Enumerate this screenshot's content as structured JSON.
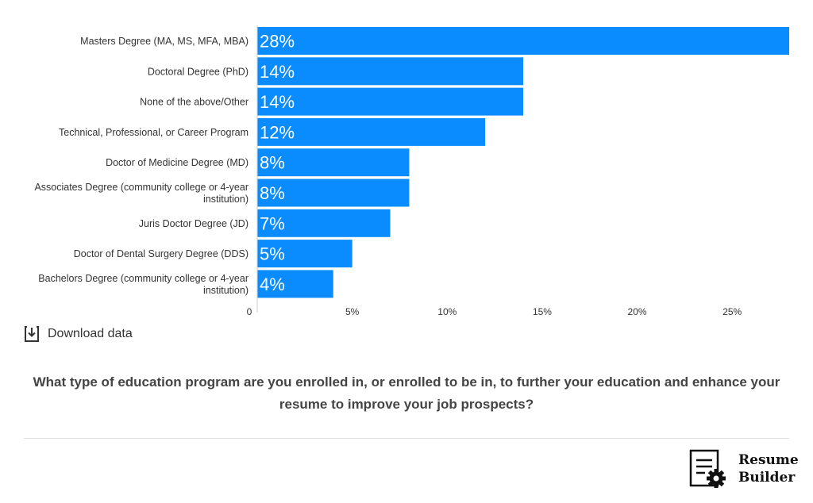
{
  "chart_data": {
    "type": "bar",
    "orientation": "horizontal",
    "categories": [
      "Masters Degree (MA, MS, MFA, MBA)",
      "Doctoral Degree (PhD)",
      "None of the above/Other",
      "Technical, Professional, or Career Program",
      "Doctor of Medicine Degree (MD)",
      "Associates Degree (community college or 4-year institution)",
      "Juris Doctor Degree (JD)",
      "Doctor of Dental Surgery Degree (DDS)",
      "Bachelors Degree (community college or 4-year institution)"
    ],
    "values": [
      28,
      14,
      14,
      12,
      8,
      8,
      7,
      5,
      4
    ],
    "data_labels": [
      "28%",
      "14%",
      "14%",
      "12%",
      "8%",
      "8%",
      "7%",
      "5%",
      "4%"
    ],
    "xlim": [
      0,
      28
    ],
    "xticks": [
      0,
      5,
      10,
      15,
      20,
      25
    ],
    "xtick_labels": [
      "0",
      "5%",
      "10%",
      "15%",
      "20%",
      "25%"
    ],
    "bar_color": "#0a8cff",
    "grid": false,
    "legend": "none"
  },
  "download": {
    "label": "Download data",
    "icon": "download-icon"
  },
  "question": "What type of education program are you enrolled in, or enrolled to be in, to further your education and enhance your resume to improve your job prospects?",
  "brand": {
    "line1": "Resume",
    "line2": "Builder",
    "icon": "resume-gear-icon"
  }
}
